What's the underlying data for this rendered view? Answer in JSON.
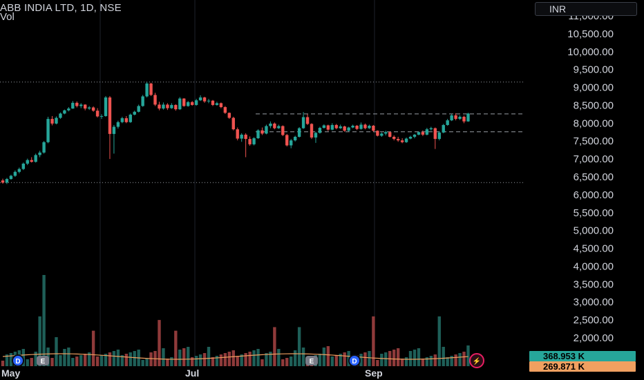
{
  "header": {
    "title": "ABB INDIA LTD, 1D, NSE",
    "vol_label": "Vol",
    "currency": "INR"
  },
  "colors": {
    "up": "#26a69a",
    "down": "#ef5350",
    "up_vol": "#1e5f58",
    "down_vol": "#8f3a3a",
    "volume_ma": "#f0a060",
    "grid": "#1e222d",
    "badge_vol": "#26a69a",
    "badge_ma": "#f0a060"
  },
  "chart_data": {
    "type": "candlestick",
    "title": "ABB INDIA LTD, 1D, NSE",
    "y_axis": {
      "ticks": [
        "11,000.00",
        "10,500.00",
        "10,000.00",
        "9,500.00",
        "9,000.00",
        "8,500.00",
        "8,000.00",
        "7,500.00",
        "7,000.00",
        "6,500.00",
        "6,000.00",
        "5,500.00",
        "5,000.00",
        "4,500.00",
        "4,000.00",
        "3,500.00",
        "3,000.00",
        "2,500.00",
        "2,000.00"
      ],
      "tick_values": [
        11000,
        10500,
        10000,
        9500,
        9000,
        8500,
        8000,
        7500,
        7000,
        6500,
        6000,
        5500,
        5000,
        4500,
        4000,
        3500,
        3000,
        2500,
        2000
      ],
      "range": [
        1700,
        11200
      ]
    },
    "x_axis": {
      "ticks": [
        "May",
        "Jul",
        "Sep"
      ],
      "tick_index": [
        2,
        47,
        92
      ]
    },
    "reference_levels": [
      {
        "value": 9150,
        "style": "dotted"
      },
      {
        "value": 8260,
        "style": "dashed"
      },
      {
        "value": 7760,
        "style": "dashed"
      },
      {
        "value": 6340,
        "style": "dotted"
      }
    ],
    "candles": [
      [
        6400,
        6450,
        6310,
        6340
      ],
      [
        6340,
        6470,
        6300,
        6440
      ],
      [
        6440,
        6560,
        6420,
        6530
      ],
      [
        6530,
        6680,
        6500,
        6640
      ],
      [
        6640,
        6760,
        6600,
        6720
      ],
      [
        6720,
        6900,
        6690,
        6870
      ],
      [
        6870,
        7010,
        6830,
        6970
      ],
      [
        6970,
        7050,
        6900,
        6920
      ],
      [
        6920,
        7150,
        6900,
        7110
      ],
      [
        7110,
        7230,
        7050,
        7180
      ],
      [
        7180,
        7500,
        7150,
        7470
      ],
      [
        7470,
        8180,
        7440,
        8120
      ],
      [
        8120,
        8200,
        7940,
        7990
      ],
      [
        7990,
        8190,
        7970,
        8150
      ],
      [
        8150,
        8300,
        8120,
        8270
      ],
      [
        8270,
        8380,
        8250,
        8360
      ],
      [
        8360,
        8450,
        8330,
        8410
      ],
      [
        8410,
        8620,
        8400,
        8570
      ],
      [
        8570,
        8610,
        8440,
        8480
      ],
      [
        8480,
        8560,
        8420,
        8520
      ],
      [
        8520,
        8530,
        8360,
        8410
      ],
      [
        8410,
        8480,
        8370,
        8440
      ],
      [
        8440,
        8470,
        8320,
        8350
      ],
      [
        8350,
        8420,
        8160,
        8190
      ],
      [
        8190,
        8250,
        8120,
        8200
      ],
      [
        8200,
        8760,
        8180,
        8720
      ],
      [
        8720,
        8760,
        7000,
        7700
      ],
      [
        7700,
        7950,
        7150,
        7900
      ],
      [
        7900,
        8070,
        7850,
        8030
      ],
      [
        8030,
        8180,
        8000,
        8140
      ],
      [
        8140,
        8200,
        8000,
        8030
      ],
      [
        8030,
        8270,
        8010,
        8240
      ],
      [
        8240,
        8350,
        8220,
        8320
      ],
      [
        8320,
        8520,
        8300,
        8480
      ],
      [
        8480,
        8790,
        8460,
        8750
      ],
      [
        8750,
        9150,
        8720,
        9110
      ],
      [
        9110,
        9130,
        8760,
        8790
      ],
      [
        8790,
        8850,
        8480,
        8520
      ],
      [
        8520,
        8600,
        8360,
        8410
      ],
      [
        8410,
        8580,
        8380,
        8520
      ],
      [
        8520,
        8560,
        8370,
        8420
      ],
      [
        8420,
        8560,
        8400,
        8510
      ],
      [
        8510,
        8530,
        8350,
        8390
      ],
      [
        8390,
        8730,
        8370,
        8690
      ],
      [
        8690,
        8700,
        8460,
        8480
      ],
      [
        8480,
        8620,
        8460,
        8590
      ],
      [
        8590,
        8620,
        8490,
        8510
      ],
      [
        8510,
        8680,
        8490,
        8640
      ],
      [
        8640,
        8780,
        8620,
        8720
      ],
      [
        8720,
        8740,
        8570,
        8610
      ],
      [
        8610,
        8680,
        8560,
        8630
      ],
      [
        8630,
        8650,
        8480,
        8510
      ],
      [
        8510,
        8600,
        8490,
        8560
      ],
      [
        8560,
        8580,
        8420,
        8450
      ],
      [
        8450,
        8480,
        8260,
        8290
      ],
      [
        8290,
        8300,
        8120,
        8150
      ],
      [
        8150,
        8180,
        7800,
        7830
      ],
      [
        7830,
        7880,
        7520,
        7570
      ],
      [
        7570,
        7720,
        7480,
        7680
      ],
      [
        7680,
        7720,
        7050,
        7560
      ],
      [
        7560,
        7630,
        7370,
        7410
      ],
      [
        7410,
        7610,
        7380,
        7580
      ],
      [
        7580,
        7830,
        7560,
        7800
      ],
      [
        7800,
        7880,
        7670,
        7710
      ],
      [
        7710,
        7960,
        7690,
        7920
      ],
      [
        7920,
        8050,
        7860,
        7990
      ],
      [
        7990,
        8020,
        7830,
        7860
      ],
      [
        7860,
        7960,
        7840,
        7920
      ],
      [
        7920,
        7940,
        7640,
        7670
      ],
      [
        7670,
        7700,
        7350,
        7380
      ],
      [
        7380,
        7560,
        7300,
        7520
      ],
      [
        7520,
        7650,
        7490,
        7620
      ],
      [
        7620,
        7890,
        7600,
        7860
      ],
      [
        7860,
        8310,
        7840,
        8170
      ],
      [
        8170,
        8250,
        7950,
        7980
      ],
      [
        7980,
        8000,
        7560,
        7600
      ],
      [
        7600,
        7760,
        7450,
        7730
      ],
      [
        7730,
        7900,
        7710,
        7870
      ],
      [
        7870,
        7970,
        7850,
        7940
      ],
      [
        7940,
        7960,
        7780,
        7820
      ],
      [
        7820,
        8000,
        7800,
        7950
      ],
      [
        7950,
        7980,
        7830,
        7860
      ],
      [
        7860,
        7960,
        7840,
        7910
      ],
      [
        7910,
        7930,
        7760,
        7790
      ],
      [
        7790,
        7900,
        7770,
        7880
      ],
      [
        7880,
        7960,
        7860,
        7930
      ],
      [
        7930,
        7950,
        7810,
        7840
      ],
      [
        7840,
        8020,
        7820,
        7960
      ],
      [
        7960,
        7990,
        7830,
        7860
      ],
      [
        7860,
        7960,
        7840,
        7930
      ],
      [
        7930,
        7950,
        7760,
        7790
      ],
      [
        7790,
        7800,
        7630,
        7650
      ],
      [
        7650,
        7740,
        7620,
        7710
      ],
      [
        7710,
        7790,
        7660,
        7750
      ],
      [
        7750,
        7770,
        7600,
        7620
      ],
      [
        7620,
        7660,
        7520,
        7560
      ],
      [
        7560,
        7620,
        7480,
        7520
      ],
      [
        7520,
        7580,
        7440,
        7470
      ],
      [
        7470,
        7600,
        7450,
        7570
      ],
      [
        7570,
        7650,
        7550,
        7620
      ],
      [
        7620,
        7700,
        7580,
        7680
      ],
      [
        7680,
        7770,
        7660,
        7750
      ],
      [
        7750,
        7800,
        7640,
        7680
      ],
      [
        7680,
        7870,
        7660,
        7830
      ],
      [
        7830,
        7900,
        7790,
        7860
      ],
      [
        7860,
        7880,
        7280,
        7560
      ],
      [
        7560,
        7780,
        7520,
        7740
      ],
      [
        7740,
        7980,
        7720,
        7950
      ],
      [
        7950,
        8120,
        7930,
        8080
      ],
      [
        8080,
        8260,
        8060,
        8220
      ],
      [
        8220,
        8280,
        8080,
        8120
      ],
      [
        8120,
        8220,
        8090,
        8180
      ],
      [
        8180,
        8210,
        8000,
        8050
      ],
      [
        8050,
        8290,
        8040,
        8270
      ]
    ],
    "volume": [
      {
        "index": 9,
        "value": 2600
      },
      {
        "index": 22,
        "value": 2200
      },
      {
        "index": 38,
        "value": 2500
      },
      {
        "index": 42,
        "value": 2200
      },
      {
        "index": 66,
        "value": 2300
      },
      {
        "index": 72,
        "value": 2300
      },
      {
        "index": 90,
        "value": 2600
      },
      {
        "index": 106,
        "value": 2600
      }
    ],
    "badges": {
      "volume_value": "368.953 K",
      "volume_ma_value": "269.871 K"
    },
    "events": [
      {
        "label": "D",
        "index": 4,
        "kind": "dividend"
      },
      {
        "label": "E",
        "index": 8,
        "kind": "earnings"
      },
      {
        "label": "E",
        "index": 76,
        "kind": "earnings"
      },
      {
        "label": "D",
        "index": 86,
        "kind": "dividend"
      },
      {
        "label": "⚡",
        "index": 115,
        "kind": "split"
      }
    ]
  }
}
